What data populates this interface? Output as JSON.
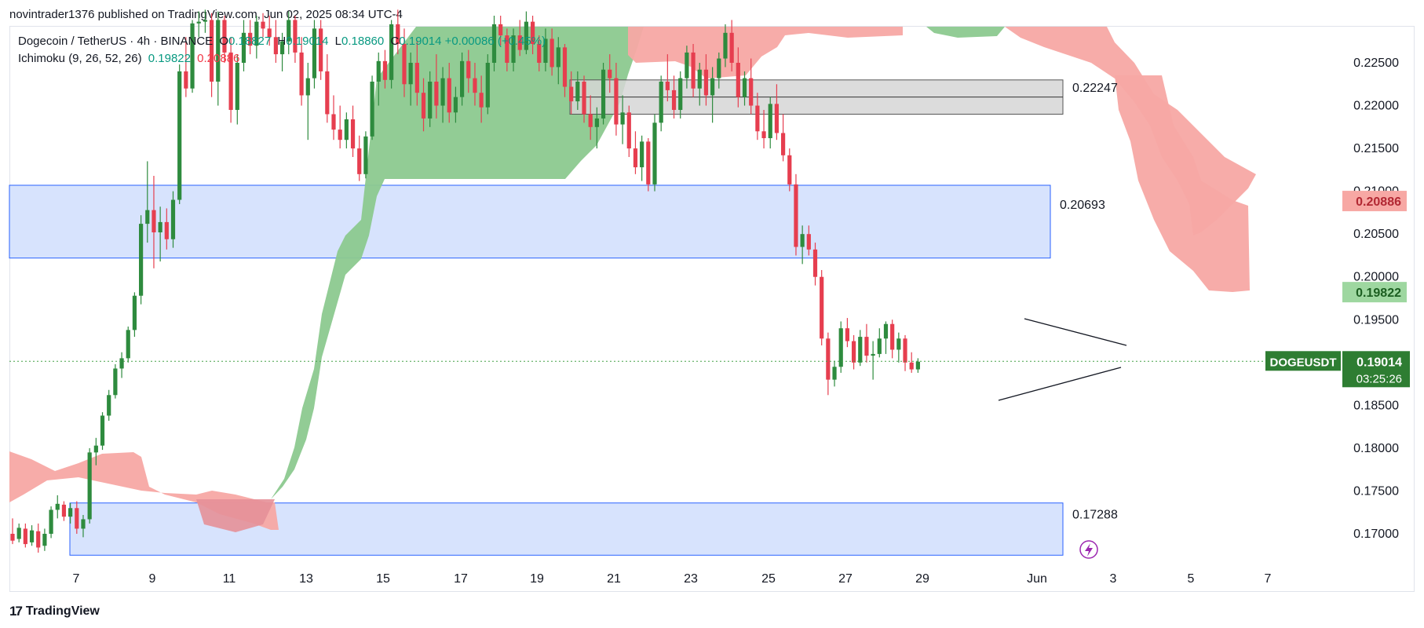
{
  "header": {
    "publisher_text": "novintrader1376 published on TradingView.com, Jun 02, 2025 08:34 UTC-4"
  },
  "legend": {
    "symbol_line": "Dogecoin / TetherUS · 4h · BINANCE",
    "o_label": "O",
    "o_value": "0.18827",
    "h_label": "H",
    "h_value": "0.19014",
    "l_label": "L",
    "l_value": "0.18860",
    "c_label": "C",
    "c_value": "0.19014",
    "change": "+0.00086 (+0.45%)",
    "indicator": "Ichimoku (9, 26, 52, 26)",
    "ind_v1": "0.19822",
    "ind_v2": "0.20886"
  },
  "footer": {
    "brand": "TradingView",
    "logo": "17"
  },
  "colors": {
    "up": "#2e8b3e",
    "down": "#e63e4f",
    "cloud_green": "#8cc98f",
    "cloud_red": "#f7a8a4",
    "zone_blue": "#d3e0fd",
    "zone_blue_border": "#2962ff",
    "zone_gray": "#d6d6d6",
    "price_line": "#43a047"
  },
  "chart_data": {
    "type": "candlestick",
    "symbol": "DOGEUSDT",
    "timeframe": "4h",
    "exchange": "BINANCE",
    "x_ticks": [
      "7",
      "9",
      "11",
      "13",
      "15",
      "17",
      "19",
      "21",
      "23",
      "25",
      "27",
      "29",
      "Jun",
      "3",
      "5",
      "7"
    ],
    "y_ticks": [
      "0.22500",
      "0.22000",
      "0.21500",
      "0.21000",
      "0.20500",
      "0.20000",
      "0.19500",
      "0.18500",
      "0.18000",
      "0.17500",
      "0.17000"
    ],
    "ylim": [
      0.1665,
      0.2305
    ],
    "zones": [
      {
        "kind": "resistance",
        "color": "gray",
        "top": 0.223,
        "bottom": 0.219,
        "label": "0.22247"
      },
      {
        "kind": "supply",
        "color": "blue",
        "top": 0.2107,
        "bottom": 0.2022,
        "label": "0.20693"
      },
      {
        "kind": "demand",
        "color": "blue",
        "top": 0.1736,
        "bottom": 0.1675,
        "label": "0.17288"
      }
    ],
    "pattern": {
      "type": "symmetrical-triangle",
      "start": "May 31",
      "end": "Jun 2"
    },
    "price_labels": [
      {
        "name": "senkou-span-b",
        "value": "0.20886"
      },
      {
        "name": "senkou-span-a",
        "value": "0.19822"
      }
    ],
    "last_price": {
      "value": 0.19014,
      "label": "0.19014",
      "symbol_label": "DOGEUSDT",
      "countdown": "03:25:26"
    },
    "candles_note": "Approximate OHLC per 4h bar, May 6 - Jun 2, 2025",
    "candles": [
      [
        0.17,
        0.1718,
        0.1688,
        0.1692
      ],
      [
        0.1694,
        0.1712,
        0.169,
        0.1707
      ],
      [
        0.1706,
        0.1712,
        0.1684,
        0.1688
      ],
      [
        0.169,
        0.171,
        0.1686,
        0.1704
      ],
      [
        0.1703,
        0.1712,
        0.1678,
        0.1684
      ],
      [
        0.1686,
        0.1706,
        0.168,
        0.17
      ],
      [
        0.17,
        0.1732,
        0.1695,
        0.1728
      ],
      [
        0.1728,
        0.1745,
        0.1718,
        0.1735
      ],
      [
        0.1734,
        0.1738,
        0.1715,
        0.172
      ],
      [
        0.172,
        0.1736,
        0.1712,
        0.173
      ],
      [
        0.173,
        0.1738,
        0.17,
        0.1706
      ],
      [
        0.1706,
        0.1722,
        0.1696,
        0.1717
      ],
      [
        0.1717,
        0.18,
        0.1712,
        0.1795
      ],
      [
        0.1795,
        0.1812,
        0.178,
        0.1803
      ],
      [
        0.1803,
        0.1842,
        0.1798,
        0.1838
      ],
      [
        0.1838,
        0.1868,
        0.1832,
        0.1862
      ],
      [
        0.1862,
        0.1898,
        0.1858,
        0.1893
      ],
      [
        0.1893,
        0.1912,
        0.1882,
        0.1905
      ],
      [
        0.1905,
        0.1942,
        0.19,
        0.1938
      ],
      [
        0.1938,
        0.1982,
        0.193,
        0.1978
      ],
      [
        0.1978,
        0.2072,
        0.1968,
        0.2062
      ],
      [
        0.2062,
        0.2135,
        0.204,
        0.2078
      ],
      [
        0.2078,
        0.2118,
        0.201,
        0.2052
      ],
      [
        0.2052,
        0.2082,
        0.2018,
        0.2064
      ],
      [
        0.2064,
        0.208,
        0.2032,
        0.2044
      ],
      [
        0.2044,
        0.21,
        0.2034,
        0.209
      ],
      [
        0.209,
        0.2248,
        0.2085,
        0.224
      ],
      [
        0.224,
        0.228,
        0.221,
        0.222
      ],
      [
        0.222,
        0.23,
        0.2215,
        0.2296
      ],
      [
        0.2296,
        0.231,
        0.228,
        0.2298
      ],
      [
        0.2298,
        0.2312,
        0.2285,
        0.23
      ],
      [
        0.23,
        0.2308,
        0.221,
        0.2228
      ],
      [
        0.2228,
        0.231,
        0.22,
        0.23
      ],
      [
        0.23,
        0.2305,
        0.225,
        0.2262
      ],
      [
        0.2262,
        0.228,
        0.218,
        0.2195
      ],
      [
        0.2195,
        0.226,
        0.2178,
        0.225
      ],
      [
        0.225,
        0.23,
        0.224,
        0.2285
      ],
      [
        0.2285,
        0.23,
        0.226,
        0.227
      ],
      [
        0.227,
        0.2305,
        0.2255,
        0.2298
      ],
      [
        0.2298,
        0.2308,
        0.228,
        0.229
      ],
      [
        0.229,
        0.2305,
        0.227,
        0.228
      ],
      [
        0.228,
        0.23,
        0.225,
        0.226
      ],
      [
        0.226,
        0.2285,
        0.224,
        0.2275
      ],
      [
        0.2275,
        0.231,
        0.226,
        0.23
      ],
      [
        0.23,
        0.2305,
        0.225,
        0.2262
      ],
      [
        0.2262,
        0.228,
        0.22,
        0.2212
      ],
      [
        0.2212,
        0.225,
        0.216,
        0.2232
      ],
      [
        0.2232,
        0.23,
        0.222,
        0.229
      ],
      [
        0.229,
        0.23,
        0.223,
        0.224
      ],
      [
        0.224,
        0.226,
        0.218,
        0.219
      ],
      [
        0.219,
        0.2212,
        0.216,
        0.2172
      ],
      [
        0.2172,
        0.22,
        0.215,
        0.216
      ],
      [
        0.216,
        0.2192,
        0.215,
        0.2184
      ],
      [
        0.2184,
        0.22,
        0.214,
        0.215
      ],
      [
        0.215,
        0.2165,
        0.2112,
        0.212
      ],
      [
        0.212,
        0.217,
        0.2115,
        0.2164
      ],
      [
        0.2164,
        0.2235,
        0.216,
        0.2228
      ],
      [
        0.2228,
        0.2262,
        0.22,
        0.2252
      ],
      [
        0.2252,
        0.2265,
        0.222,
        0.223
      ],
      [
        0.223,
        0.23,
        0.222,
        0.2295
      ],
      [
        0.2295,
        0.2312,
        0.226,
        0.2272
      ],
      [
        0.2272,
        0.229,
        0.221,
        0.2225
      ],
      [
        0.2225,
        0.2262,
        0.22,
        0.225
      ],
      [
        0.225,
        0.2275,
        0.22,
        0.2215
      ],
      [
        0.2215,
        0.2232,
        0.217,
        0.2185
      ],
      [
        0.2185,
        0.224,
        0.2175,
        0.2228
      ],
      [
        0.2228,
        0.226,
        0.2185,
        0.22
      ],
      [
        0.22,
        0.2245,
        0.218,
        0.2232
      ],
      [
        0.2232,
        0.225,
        0.218,
        0.2192
      ],
      [
        0.2192,
        0.2222,
        0.218,
        0.221
      ],
      [
        0.221,
        0.2262,
        0.22,
        0.2252
      ],
      [
        0.2252,
        0.2265,
        0.2215,
        0.2232
      ],
      [
        0.2232,
        0.225,
        0.22,
        0.2215
      ],
      [
        0.2215,
        0.2235,
        0.218,
        0.2198
      ],
      [
        0.2198,
        0.226,
        0.219,
        0.225
      ],
      [
        0.225,
        0.2305,
        0.224,
        0.2295
      ],
      [
        0.2295,
        0.2305,
        0.227,
        0.2282
      ],
      [
        0.2282,
        0.229,
        0.224,
        0.225
      ],
      [
        0.225,
        0.229,
        0.224,
        0.2282
      ],
      [
        0.2282,
        0.23,
        0.2258,
        0.2265
      ],
      [
        0.2265,
        0.231,
        0.226,
        0.2298
      ],
      [
        0.2298,
        0.2305,
        0.226,
        0.2272
      ],
      [
        0.2272,
        0.2282,
        0.224,
        0.225
      ],
      [
        0.225,
        0.229,
        0.224,
        0.2278
      ],
      [
        0.2278,
        0.229,
        0.2235,
        0.2245
      ],
      [
        0.2245,
        0.228,
        0.2225,
        0.2268
      ],
      [
        0.2268,
        0.2272,
        0.221,
        0.2222
      ],
      [
        0.2222,
        0.224,
        0.219,
        0.2205
      ],
      [
        0.2205,
        0.224,
        0.2195,
        0.2228
      ],
      [
        0.2228,
        0.2235,
        0.218,
        0.219
      ],
      [
        0.219,
        0.2212,
        0.216,
        0.2175
      ],
      [
        0.2175,
        0.2198,
        0.215,
        0.2185
      ],
      [
        0.2185,
        0.225,
        0.2178,
        0.2242
      ],
      [
        0.2242,
        0.226,
        0.2215,
        0.2232
      ],
      [
        0.2232,
        0.225,
        0.2165,
        0.2178
      ],
      [
        0.2178,
        0.2212,
        0.2155,
        0.2192
      ],
      [
        0.2192,
        0.22,
        0.214,
        0.215
      ],
      [
        0.215,
        0.217,
        0.212,
        0.2128
      ],
      [
        0.2128,
        0.2165,
        0.2112,
        0.2158
      ],
      [
        0.2158,
        0.2162,
        0.21,
        0.2108
      ],
      [
        0.2108,
        0.219,
        0.21,
        0.218
      ],
      [
        0.218,
        0.2235,
        0.217,
        0.2228
      ],
      [
        0.2228,
        0.226,
        0.2205,
        0.2218
      ],
      [
        0.2218,
        0.2235,
        0.2185,
        0.2195
      ],
      [
        0.2195,
        0.224,
        0.2185,
        0.2232
      ],
      [
        0.2232,
        0.227,
        0.222,
        0.2262
      ],
      [
        0.2262,
        0.2272,
        0.221,
        0.222
      ],
      [
        0.222,
        0.225,
        0.22,
        0.2242
      ],
      [
        0.2242,
        0.226,
        0.22,
        0.2212
      ],
      [
        0.2212,
        0.2245,
        0.218,
        0.2232
      ],
      [
        0.2232,
        0.2262,
        0.222,
        0.2255
      ],
      [
        0.2255,
        0.2295,
        0.2245,
        0.2285
      ],
      [
        0.2285,
        0.23,
        0.224,
        0.225
      ],
      [
        0.225,
        0.2268,
        0.2198,
        0.221
      ],
      [
        0.221,
        0.224,
        0.22,
        0.2232
      ],
      [
        0.2232,
        0.2255,
        0.219,
        0.22
      ],
      [
        0.22,
        0.2215,
        0.216,
        0.217
      ],
      [
        0.217,
        0.2195,
        0.215,
        0.2162
      ],
      [
        0.2162,
        0.221,
        0.215,
        0.2202
      ],
      [
        0.2202,
        0.2225,
        0.216,
        0.2168
      ],
      [
        0.2168,
        0.219,
        0.2135,
        0.2142
      ],
      [
        0.2142,
        0.215,
        0.21,
        0.2108
      ],
      [
        0.2108,
        0.212,
        0.2025,
        0.2035
      ],
      [
        0.2035,
        0.206,
        0.2015,
        0.205
      ],
      [
        0.205,
        0.206,
        0.2025,
        0.2032
      ],
      [
        0.2032,
        0.204,
        0.199,
        0.2
      ],
      [
        0.2,
        0.2008,
        0.192,
        0.1928
      ],
      [
        0.1928,
        0.1935,
        0.1862,
        0.188
      ],
      [
        0.188,
        0.1902,
        0.1872,
        0.1895
      ],
      [
        0.1895,
        0.1948,
        0.1888,
        0.194
      ],
      [
        0.194,
        0.1952,
        0.1918,
        0.1925
      ],
      [
        0.1925,
        0.1932,
        0.1892,
        0.19
      ],
      [
        0.19,
        0.1938,
        0.1896,
        0.193
      ],
      [
        0.193,
        0.1945,
        0.19,
        0.1908
      ],
      [
        0.1908,
        0.1925,
        0.188,
        0.191
      ],
      [
        0.191,
        0.194,
        0.1906,
        0.1928
      ],
      [
        0.1928,
        0.1948,
        0.191,
        0.1945
      ],
      [
        0.1945,
        0.195,
        0.1905,
        0.1915
      ],
      [
        0.1915,
        0.1935,
        0.19,
        0.1928
      ],
      [
        0.1928,
        0.1932,
        0.189,
        0.19
      ],
      [
        0.19,
        0.1912,
        0.1888,
        0.1892
      ],
      [
        0.1892,
        0.1905,
        0.1888,
        0.1901
      ]
    ],
    "cloud_note": "Approximate Ichimoku cloud edges [spanA, spanB] sampled along x, with color",
    "cloud": [
      {
        "from": 0,
        "to": 18,
        "color": "red",
        "top": [
          0.18,
          0.18,
          0.179,
          0.1782,
          0.1772,
          0.1768,
          0.1768,
          0.177,
          0.1772,
          0.1772,
          0.1772,
          0.1772,
          0.1772,
          0.1772,
          0.1772,
          0.1772,
          0.1772,
          0.1772,
          0.1772
        ],
        "bottom": [
          0.1752,
          0.1756,
          0.176,
          0.1766,
          0.1762,
          0.176,
          0.1758,
          0.1752,
          0.1748,
          0.1746,
          0.1744,
          0.1742,
          0.1745,
          0.1748,
          0.1752,
          0.1755,
          0.1758,
          0.1762,
          0.1768
        ]
      }
    ]
  }
}
